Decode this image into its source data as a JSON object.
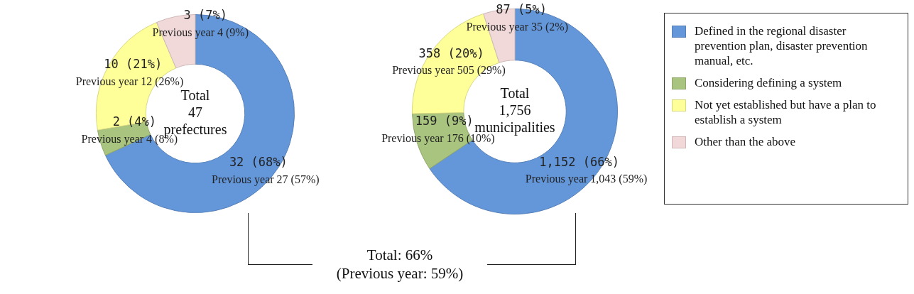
{
  "chart_data": [
    {
      "type": "donut",
      "title": "Total\n47\nprefectures",
      "categories": [
        null,
        null,
        null,
        null
      ],
      "values": [
        32,
        2,
        10,
        3
      ],
      "colors": [
        "#6497da",
        "#a9c47f",
        "#ffff99",
        "#f2d9d9"
      ],
      "value_labels": [
        "32 (68%)",
        "2 (4%)",
        "10 (21%)",
        "3 (7%)"
      ],
      "annotations": [
        "Previous year 27 (57%)",
        "Previous year 4 (8%)",
        "Previous year 12 (26%)",
        "Previous year 4 (9%)"
      ],
      "legend": false
    },
    {
      "type": "donut",
      "title": "Total\n1,756\nmunicipalities",
      "categories": [
        "Defined in the regional disaster prevention plan, disaster prevention manual, etc.",
        "Considering defining a system",
        "Not yet established but have a plan to establish a system",
        "Other than the above"
      ],
      "values": [
        1152,
        159,
        358,
        87
      ],
      "colors": [
        "#6497da",
        "#a9c47f",
        "#ffff99",
        "#f2d9d9"
      ],
      "value_labels": [
        "1,152 (66%)",
        "159 (9%)",
        "358 (20%)",
        "87 (5%)"
      ],
      "annotations": [
        "Previous year 1,043 (59%)",
        "Previous year 176 (10%)",
        "Previous year 505 (29%)",
        "Previous year 35 (2%)"
      ],
      "legend": "right"
    },
    {
      "type": "other",
      "annotations": [
        "Total: 66%",
        "(Previous year: 59%)"
      ]
    }
  ]
}
